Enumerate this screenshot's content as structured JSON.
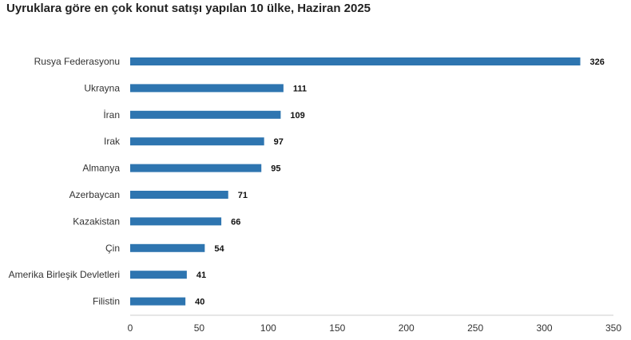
{
  "chart_data": {
    "type": "bar",
    "orientation": "horizontal",
    "title": "Uyruklara göre en çok konut satışı yapılan 10 ülke, Haziran 2025",
    "categories": [
      "Rusya Federasyonu",
      "Ukrayna",
      "İran",
      "Irak",
      "Almanya",
      "Azerbaycan",
      "Kazakistan",
      "Çin",
      "Amerika Birleşik Devletleri",
      "Filistin"
    ],
    "values": [
      326,
      111,
      109,
      97,
      95,
      71,
      66,
      54,
      41,
      40
    ],
    "xlim": [
      0,
      350
    ],
    "xticks": [
      0,
      50,
      100,
      150,
      200,
      250,
      300,
      350
    ],
    "grid": false,
    "bar_color": "#2E75B0",
    "axis_color": "#cccccc"
  }
}
